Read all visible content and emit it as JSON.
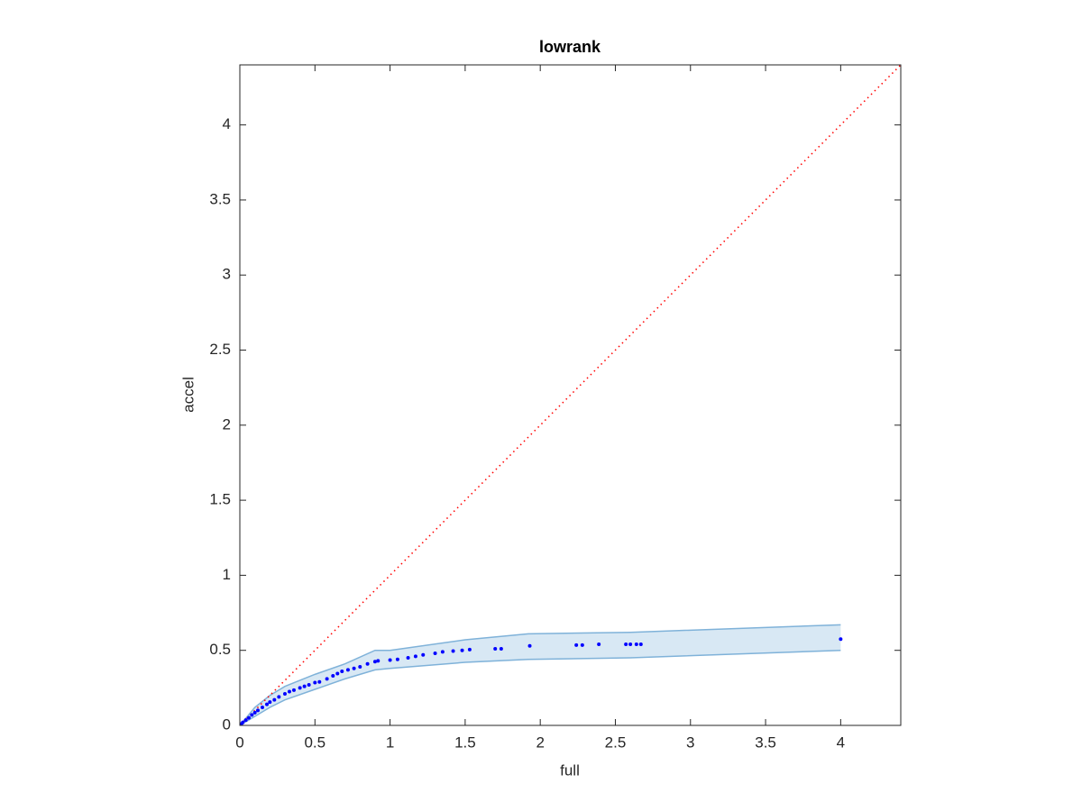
{
  "chart_data": {
    "type": "scatter",
    "title": "lowrank",
    "xlabel": "full",
    "ylabel": "accel",
    "xlim": [
      0,
      4.4
    ],
    "ylim": [
      0,
      4.4
    ],
    "xticks": [
      0,
      0.5,
      1,
      1.5,
      2,
      2.5,
      3,
      3.5,
      4
    ],
    "yticks": [
      0,
      0.5,
      1,
      1.5,
      2,
      2.5,
      3,
      3.5,
      4
    ],
    "color": "#0000ff",
    "x": [
      0.01,
      0.02,
      0.04,
      0.06,
      0.08,
      0.1,
      0.12,
      0.15,
      0.18,
      0.2,
      0.23,
      0.26,
      0.3,
      0.33,
      0.36,
      0.4,
      0.43,
      0.46,
      0.5,
      0.53,
      0.58,
      0.62,
      0.65,
      0.68,
      0.72,
      0.76,
      0.8,
      0.85,
      0.9,
      0.92,
      1.0,
      1.05,
      1.12,
      1.17,
      1.22,
      1.3,
      1.35,
      1.42,
      1.48,
      1.53,
      1.7,
      1.74,
      1.93,
      2.24,
      2.28,
      2.39,
      2.57,
      2.6,
      2.64,
      2.67,
      4.0
    ],
    "values": [
      0.01,
      0.02,
      0.035,
      0.05,
      0.07,
      0.085,
      0.1,
      0.12,
      0.14,
      0.155,
      0.17,
      0.19,
      0.21,
      0.225,
      0.235,
      0.25,
      0.26,
      0.27,
      0.285,
      0.29,
      0.31,
      0.33,
      0.345,
      0.36,
      0.37,
      0.38,
      0.39,
      0.41,
      0.425,
      0.43,
      0.435,
      0.44,
      0.45,
      0.46,
      0.47,
      0.48,
      0.49,
      0.495,
      0.5,
      0.505,
      0.51,
      0.51,
      0.53,
      0.535,
      0.535,
      0.54,
      0.54,
      0.54,
      0.54,
      0.54,
      0.575
    ],
    "band": {
      "color": "#7fb2d9",
      "x": [
        0,
        0.1,
        0.2,
        0.3,
        0.5,
        0.7,
        0.9,
        1.0,
        1.5,
        1.92,
        2.6,
        4.0
      ],
      "upper": [
        0,
        0.12,
        0.2,
        0.26,
        0.34,
        0.41,
        0.5,
        0.5,
        0.57,
        0.61,
        0.62,
        0.67
      ],
      "lower": [
        0,
        0.06,
        0.12,
        0.17,
        0.24,
        0.31,
        0.37,
        0.38,
        0.42,
        0.44,
        0.45,
        0.5
      ]
    },
    "reference_line": {
      "color": "#ff0000",
      "x": [
        0,
        4.4
      ],
      "values": [
        0,
        4.4
      ]
    }
  }
}
